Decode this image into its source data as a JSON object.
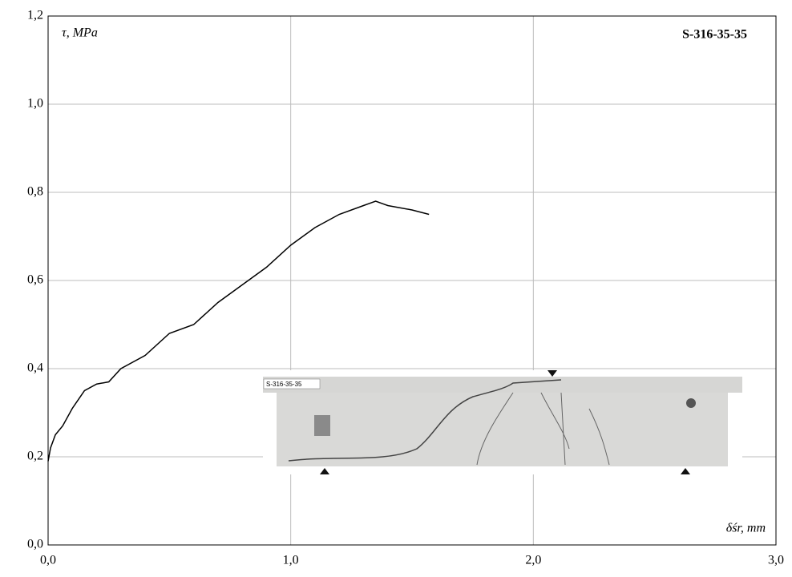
{
  "chart_data": {
    "type": "line",
    "annotation": "S-316-35-35",
    "photo_label": "S-316-35-35",
    "y_label": "τ, MPa",
    "x_label": "δśr, mm",
    "xlim": [
      0,
      3
    ],
    "ylim": [
      0,
      1.2
    ],
    "xticks": [
      {
        "value": 0,
        "label": "0,0"
      },
      {
        "value": 1,
        "label": "1,0"
      },
      {
        "value": 2,
        "label": "2,0"
      },
      {
        "value": 3,
        "label": "3,0"
      }
    ],
    "yticks": [
      {
        "value": 0,
        "label": "0,0"
      },
      {
        "value": 0.2,
        "label": "0,2"
      },
      {
        "value": 0.4,
        "label": "0,4"
      },
      {
        "value": 0.6,
        "label": "0,6"
      },
      {
        "value": 0.8,
        "label": "0,8"
      },
      {
        "value": 1,
        "label": "1,0"
      },
      {
        "value": 1.2,
        "label": "1,2"
      }
    ],
    "grid": true,
    "series": [
      {
        "color": "#000000",
        "x": [
          0,
          0.01,
          0.03,
          0.06,
          0.1,
          0.15,
          0.2,
          0.25,
          0.3,
          0.4,
          0.5,
          0.6,
          0.7,
          0.8,
          0.9,
          1.0,
          1.1,
          1.2,
          1.3,
          1.35,
          1.4,
          1.5,
          1.57
        ],
        "values": [
          0.19,
          0.22,
          0.25,
          0.27,
          0.31,
          0.35,
          0.365,
          0.37,
          0.4,
          0.43,
          0.48,
          0.5,
          0.55,
          0.59,
          0.63,
          0.68,
          0.72,
          0.75,
          0.77,
          0.78,
          0.77,
          0.76,
          0.75
        ]
      }
    ]
  }
}
